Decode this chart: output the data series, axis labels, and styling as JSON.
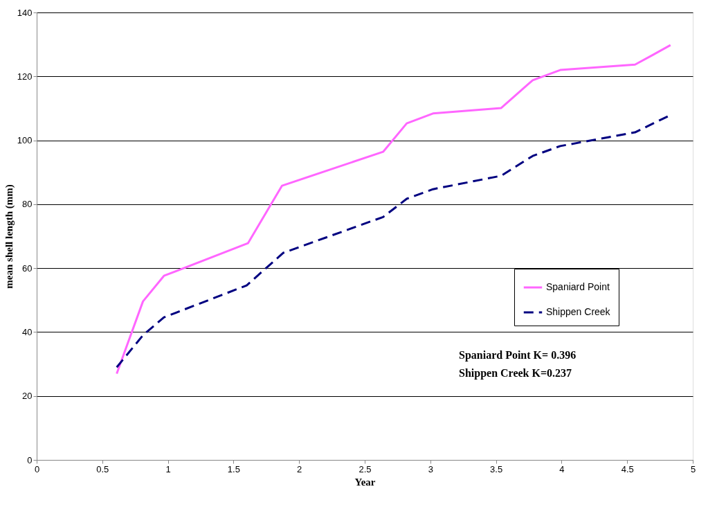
{
  "chart_data": {
    "type": "line",
    "xlabel": "Year",
    "ylabel": "mean shell length (mm)",
    "xlim": [
      0,
      5
    ],
    "xticks": [
      0,
      0.5,
      1,
      1.5,
      2,
      2.5,
      3,
      3.5,
      4,
      4.5,
      5
    ],
    "ylim": [
      0,
      140
    ],
    "yticks": [
      0,
      20,
      40,
      60,
      80,
      100,
      120,
      140
    ],
    "grid": "y",
    "legend": "right",
    "marker": "none",
    "series": [
      {
        "name": "Spaniard Point",
        "color": "#ff66ff",
        "line_style": "solid",
        "x": [
          0.61,
          0.81,
          0.97,
          1.61,
          1.87,
          2.64,
          2.82,
          3.02,
          3.54,
          3.78,
          3.99,
          4.56,
          4.69,
          4.83
        ],
        "values": [
          27,
          49.6,
          57.6,
          67.8,
          85.8,
          96.4,
          105.3,
          108.4,
          110.1,
          118.8,
          122,
          123.7,
          126.6,
          129.8
        ]
      },
      {
        "name": "Shippen Creek",
        "color": "#000080",
        "line_style": "dashed",
        "x": [
          0.61,
          0.81,
          0.97,
          1.6,
          1.88,
          2.64,
          2.82,
          3.02,
          3.54,
          3.78,
          3.99,
          4.56,
          4.83
        ],
        "values": [
          29,
          39,
          44.6,
          54.6,
          64.8,
          76,
          81.7,
          84.7,
          88.9,
          95.1,
          98.2,
          102.5,
          107.9
        ]
      }
    ],
    "annotations": [
      "Spaniard Point K= 0.396",
      "Shippen Creek K=0.237"
    ]
  }
}
